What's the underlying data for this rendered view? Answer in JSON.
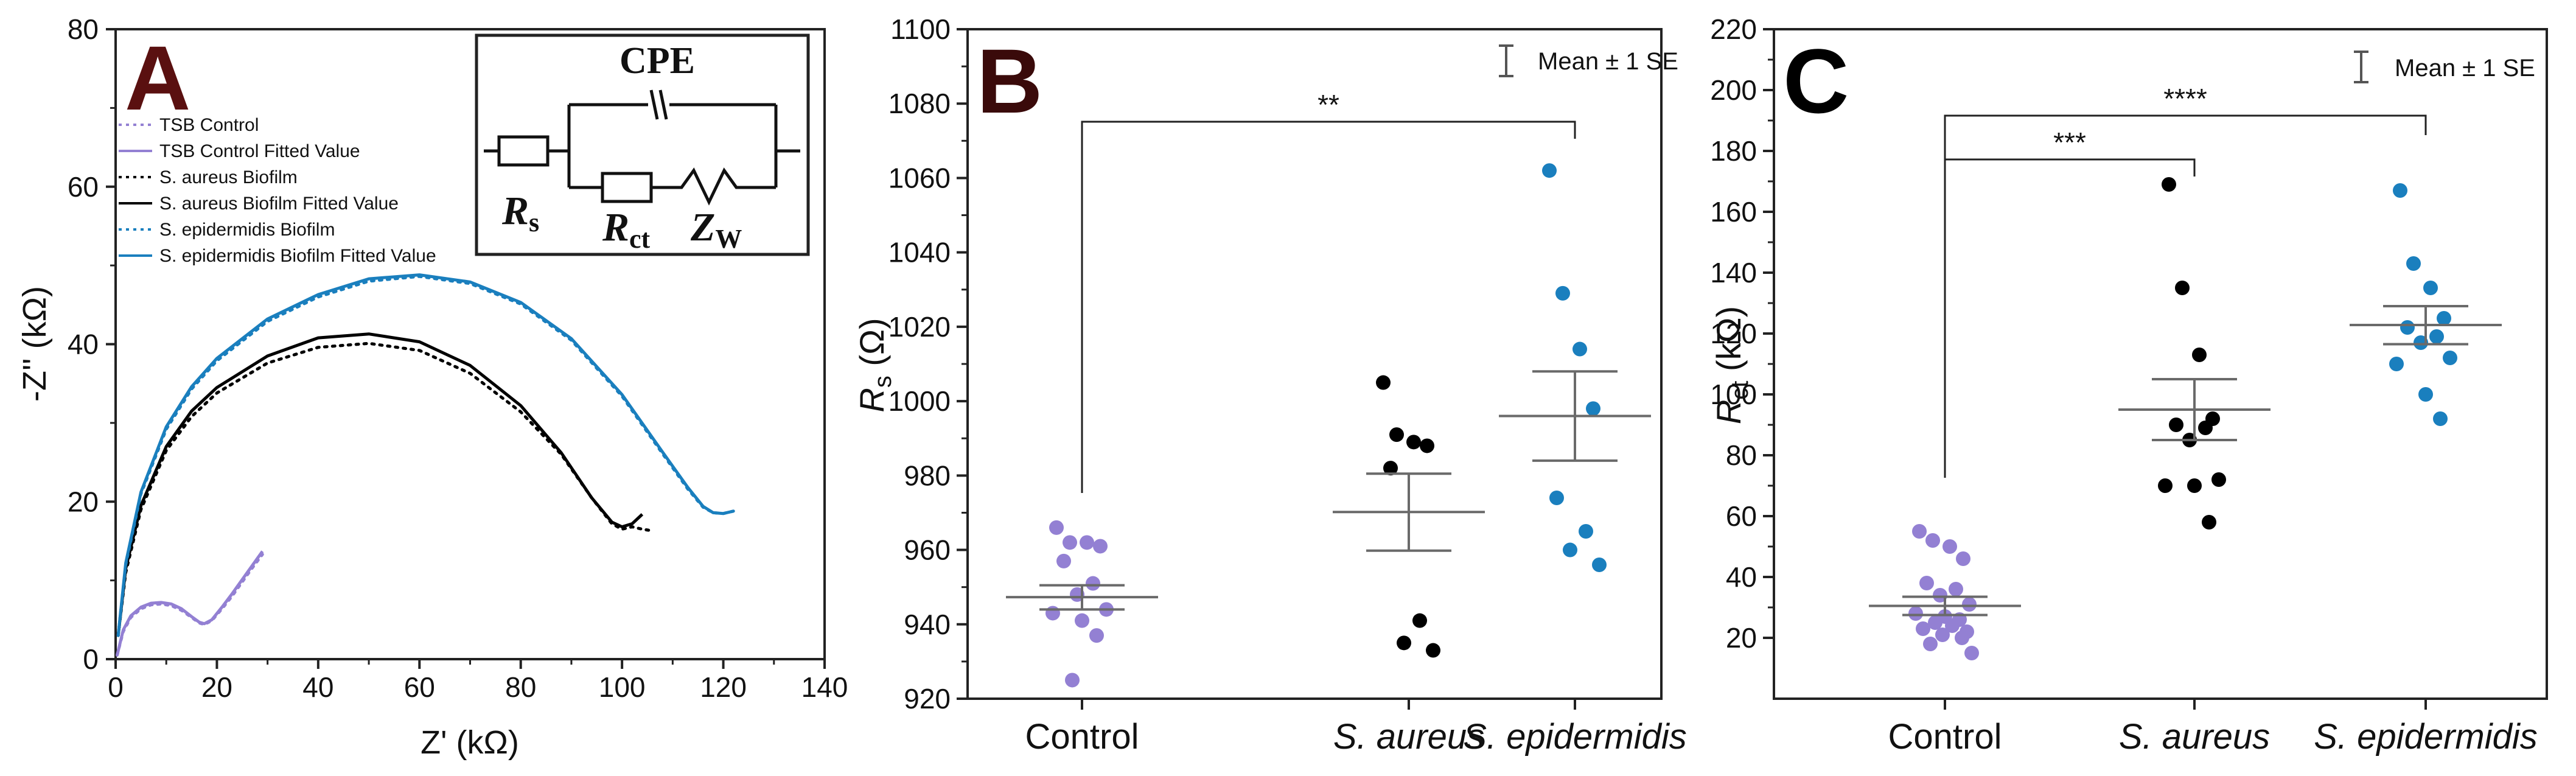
{
  "colors": {
    "control": "#9380d3",
    "aureus": "#000000",
    "epidermidis": "#1a7fbe",
    "axis": "#222222",
    "letterA": "#5a1010",
    "letterB": "#3a0a0a",
    "letterC": "#000000"
  },
  "chart_data": [
    {
      "type": "line",
      "panel": "A",
      "panel_letter": "A",
      "xlabel": "Z' (kΩ)",
      "ylabel": "-Z'' (kΩ)",
      "xlim": [
        0,
        140
      ],
      "ylim": [
        0,
        80
      ],
      "x_ticks": [
        "0",
        "20",
        "40",
        "60",
        "80",
        "100",
        "120",
        "140"
      ],
      "y_ticks": [
        "0",
        "20",
        "40",
        "60",
        "80"
      ],
      "legend_position": "upper-left",
      "series": [
        {
          "name": "TSB Control",
          "style": "dotted",
          "color_key": "control",
          "x": [
            0.3,
            1.5,
            3,
            5,
            7,
            9,
            11,
            13,
            15,
            16.5,
            17.5,
            19,
            21,
            23,
            25,
            27,
            29
          ],
          "y": [
            0.5,
            3.5,
            5.3,
            6.4,
            6.9,
            7.0,
            6.8,
            6.2,
            5.3,
            4.6,
            4.4,
            4.9,
            6.4,
            8.0,
            9.8,
            11.6,
            13.3
          ]
        },
        {
          "name": "TSB Control Fitted Value",
          "style": "solid",
          "color_key": "control",
          "x": [
            0.3,
            1.5,
            3,
            5,
            7,
            9,
            11,
            13,
            15,
            16.5,
            17.5,
            19,
            21,
            23,
            25,
            27,
            29
          ],
          "y": [
            0.5,
            3.7,
            5.5,
            6.6,
            7.1,
            7.2,
            7.0,
            6.4,
            5.4,
            4.7,
            4.5,
            5.0,
            6.6,
            8.3,
            10.1,
            11.9,
            13.7
          ]
        },
        {
          "name": "S. aureus Biofilm",
          "style": "dotted",
          "color_key": "aureus",
          "x": [
            0.5,
            2,
            5,
            10,
            15,
            20,
            30,
            40,
            50,
            60,
            70,
            80,
            88,
            94,
            98,
            100,
            102,
            104,
            106
          ],
          "y": [
            3,
            11,
            19,
            26.5,
            30.8,
            33.8,
            37.6,
            39.6,
            40.1,
            39.2,
            36.3,
            31.4,
            26,
            20.5,
            17.2,
            16.5,
            16.8,
            16.5,
            16.3
          ]
        },
        {
          "name": "S. aureus Biofilm Fitted Value",
          "style": "solid",
          "color_key": "aureus",
          "x": [
            0.5,
            2,
            5,
            10,
            15,
            20,
            30,
            40,
            50,
            60,
            70,
            80,
            88,
            94,
            98,
            100,
            102,
            104
          ],
          "y": [
            3,
            11.5,
            19.5,
            27,
            31.5,
            34.5,
            38.5,
            40.8,
            41.3,
            40.3,
            37.3,
            32.2,
            26.2,
            20.5,
            17.4,
            16.8,
            17.2,
            18.4
          ]
        },
        {
          "name": "S. epidermidis Biofilm",
          "style": "dotted",
          "color_key": "epidermidis",
          "x": [
            0.5,
            2,
            5,
            10,
            15,
            20,
            30,
            40,
            50,
            60,
            70,
            80,
            90,
            100,
            108,
            113,
            116,
            118,
            120,
            122
          ],
          "y": [
            3,
            12,
            21,
            29.2,
            34.3,
            37.9,
            42.9,
            46,
            48,
            48.6,
            47.7,
            45.1,
            40.5,
            33.4,
            26.1,
            21.6,
            19.3,
            18.6,
            18.5,
            18.8
          ]
        },
        {
          "name": "S. epidermidis Biofilm Fitted Value",
          "style": "solid",
          "color_key": "epidermidis",
          "x": [
            0.5,
            2,
            5,
            10,
            15,
            20,
            30,
            40,
            50,
            60,
            70,
            80,
            90,
            100,
            108,
            113,
            116,
            118,
            120,
            122
          ],
          "y": [
            3,
            12.2,
            21.2,
            29.5,
            34.6,
            38.2,
            43.2,
            46.3,
            48.3,
            48.8,
            47.9,
            45.3,
            40.7,
            33.6,
            26.3,
            21.8,
            19.4,
            18.6,
            18.5,
            18.8
          ]
        }
      ],
      "inset_circuit": {
        "labels": [
          "CPE",
          "R",
          "s",
          "R",
          "ct",
          "Z",
          "W"
        ]
      }
    },
    {
      "type": "scatter",
      "panel": "B",
      "panel_letter": "B",
      "ylabel_main": "R",
      "ylabel_sub": "s",
      "ylabel_unit": " (Ω)",
      "ylim": [
        920,
        1100
      ],
      "y_ticks": [
        "920",
        "940",
        "960",
        "980",
        "1000",
        "1020",
        "1040",
        "1060",
        "1080",
        "1100"
      ],
      "categories": [
        "Control",
        "S. aureus",
        "S. epidermidis"
      ],
      "legend": "Mean ± 1 SE",
      "series": [
        {
          "name": "Control",
          "color_key": "control",
          "values": [
            966,
            962,
            962,
            961,
            957,
            951,
            948,
            944,
            943,
            941,
            937,
            925
          ],
          "mean": 947.3,
          "se_low": 944,
          "se_high": 950.5
        },
        {
          "name": "S. aureus",
          "color_key": "aureus",
          "values": [
            1005,
            991,
            989,
            988,
            982,
            941,
            935,
            933
          ],
          "mean": 970.2,
          "se_low": 959.8,
          "se_high": 980.5
        },
        {
          "name": "S. epidermidis",
          "color_key": "epidermidis",
          "values": [
            1062,
            1029,
            1014,
            998,
            974,
            965,
            960,
            956
          ],
          "mean": 996,
          "se_low": 984,
          "se_high": 1008
        }
      ],
      "significance": [
        {
          "from": 0,
          "to": 2,
          "label": "**"
        }
      ]
    },
    {
      "type": "scatter",
      "panel": "C",
      "panel_letter": "C",
      "ylabel_main": "R",
      "ylabel_sub": "ct",
      "ylabel_unit": " (kΩ)",
      "ylim": [
        0,
        220
      ],
      "y_ticks": [
        "20",
        "40",
        "60",
        "80",
        "100",
        "120",
        "140",
        "160",
        "180",
        "200",
        "220"
      ],
      "categories": [
        "Control",
        "S. aureus",
        "S. epidermidis"
      ],
      "legend": "Mean ± 1 SE",
      "series": [
        {
          "name": "Control",
          "color_key": "control",
          "values": [
            55,
            52,
            50,
            46,
            38,
            36,
            34,
            31,
            28,
            27,
            26,
            25,
            24,
            23,
            22,
            21,
            20,
            18,
            15
          ],
          "mean": 30.5,
          "se_low": 27.5,
          "se_high": 33.5
        },
        {
          "name": "S. aureus",
          "color_key": "aureus",
          "values": [
            169,
            135,
            113,
            92,
            90,
            89,
            85,
            72,
            70,
            70,
            58
          ],
          "mean": 95,
          "se_low": 85,
          "se_high": 105
        },
        {
          "name": "S. epidermidis",
          "color_key": "epidermidis",
          "values": [
            167,
            143,
            135,
            125,
            122,
            119,
            117,
            112,
            110,
            100,
            92
          ],
          "mean": 122.8,
          "se_low": 116.5,
          "se_high": 129
        },
        {
          "name": "_",
          "color_key": "control",
          "values": [],
          "mean": 0,
          "se_low": 0,
          "se_high": 0
        }
      ],
      "significance": [
        {
          "from": 0,
          "to": 1,
          "label": "***"
        },
        {
          "from": 0,
          "to": 2,
          "label": "****"
        }
      ]
    }
  ]
}
